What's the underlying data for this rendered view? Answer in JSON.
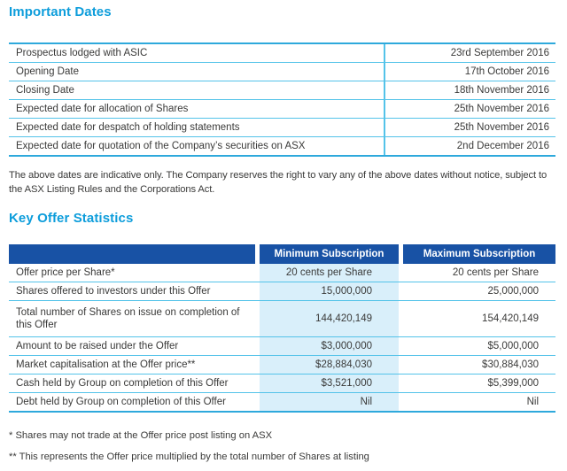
{
  "colors": {
    "heading_accent": "#0d9ddb",
    "table_header_bg": "#1852a5",
    "table_header_text": "#ffffff",
    "highlight_column_bg": "#d9effa",
    "table_line": "#54c3e9",
    "table_outer_line": "#2ea9dc",
    "body_text": "#3a3a39"
  },
  "important_dates": {
    "heading": "Important Dates",
    "rows": [
      {
        "label": "Prospectus lodged with ASIC",
        "value": "23rd September 2016"
      },
      {
        "label": "Opening Date",
        "value": "17th October 2016"
      },
      {
        "label": "Closing Date",
        "value": "18th November 2016"
      },
      {
        "label": "Expected date for allocation of Shares",
        "value": "25th November 2016"
      },
      {
        "label": "Expected date for despatch of holding statements",
        "value": "25th November 2016"
      },
      {
        "label": "Expected date for quotation of the Company’s securities on ASX",
        "value": "2nd December 2016"
      }
    ],
    "note": "The above dates are indicative only. The Company reserves the right to vary any of the above dates without notice, subject to the ASX Listing Rules and the Corporations Act."
  },
  "key_offer_statistics": {
    "heading": "Key Offer Statistics",
    "columns": {
      "min": "Minimum Subscription",
      "max": "Maximum Subscription"
    },
    "rows": [
      {
        "label": "Offer price per Share*",
        "min": "20 cents per Share",
        "max": "20 cents per Share"
      },
      {
        "label": "Shares offered to investors under this Offer",
        "min": "15,000,000",
        "max": "25,000,000"
      },
      {
        "label": "Total number of Shares on issue on completion of this Offer",
        "min": "144,420,149",
        "max": "154,420,149"
      },
      {
        "label": "Amount to be raised under the Offer",
        "min": "$3,000,000",
        "max": "$5,000,000"
      },
      {
        "label": "Market capitalisation at the Offer price**",
        "min": "$28,884,030",
        "max": "$30,884,030"
      },
      {
        "label": "Cash held by Group on completion of this Offer",
        "min": "$3,521,000",
        "max": "$5,399,000"
      },
      {
        "label": "Debt held by Group on completion of this Offer",
        "min": "Nil",
        "max": "Nil"
      }
    ],
    "footnotes": [
      "* Shares may not trade at the Offer price post listing on ASX",
      "** This represents the Offer price multiplied by the total number of Shares at listing"
    ]
  }
}
